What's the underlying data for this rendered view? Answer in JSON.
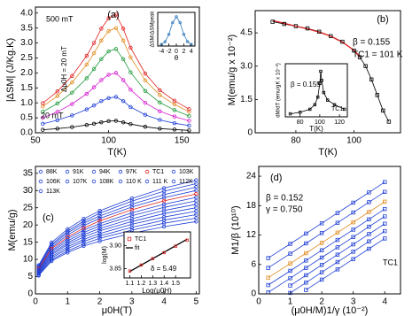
{
  "chart_data": [
    {
      "type": "line",
      "xlabel": "T(K)",
      "ylabel": "|ΔSM| (J/Kg.K)",
      "annotations": [
        "(a)",
        "500 mT",
        "20 mT",
        "Δμ0H = 20 mT"
      ],
      "x": [
        55,
        65,
        75,
        85,
        90,
        95,
        100,
        105,
        110,
        115,
        125,
        135,
        145,
        155
      ],
      "series": [
        {
          "color": "#000000",
          "marker": "circle",
          "values": [
            0.1,
            0.14,
            0.19,
            0.26,
            0.3,
            0.35,
            0.39,
            0.4,
            0.35,
            0.29,
            0.2,
            0.14,
            0.11,
            0.08
          ]
        },
        {
          "color": "#1f3fd6",
          "marker": "circle",
          "values": [
            0.3,
            0.42,
            0.58,
            0.78,
            0.91,
            1.06,
            1.16,
            1.2,
            1.06,
            0.86,
            0.6,
            0.43,
            0.32,
            0.24
          ]
        },
        {
          "color": "#d61fd0",
          "marker": "circle",
          "values": [
            0.5,
            0.7,
            0.96,
            1.3,
            1.52,
            1.76,
            1.94,
            2.0,
            1.76,
            1.44,
            1.0,
            0.72,
            0.54,
            0.4
          ]
        },
        {
          "color": "#1f9a3a",
          "marker": "circle",
          "values": [
            0.7,
            0.98,
            1.34,
            1.82,
            2.13,
            2.46,
            2.72,
            2.8,
            2.46,
            2.02,
            1.4,
            1.01,
            0.76,
            0.56
          ]
        },
        {
          "color": "#e08a1e",
          "marker": "circle",
          "values": [
            0.88,
            1.23,
            1.68,
            2.28,
            2.66,
            3.08,
            3.4,
            3.5,
            3.08,
            2.52,
            1.75,
            1.26,
            0.95,
            0.7
          ]
        },
        {
          "color": "#e01e1e",
          "marker": "circle",
          "values": [
            0.99,
            1.38,
            1.9,
            2.57,
            3.0,
            3.48,
            3.83,
            3.95,
            3.48,
            2.84,
            1.98,
            1.42,
            1.07,
            0.79
          ]
        }
      ],
      "xlim": [
        50,
        162
      ],
      "ylim": [
        0,
        4.2
      ],
      "xticks": [
        50,
        100,
        150
      ],
      "yticks": [
        {
          "value": 0,
          "label": "0.0"
        },
        0.5,
        {
          "value": 1,
          "label": "1.0"
        },
        1.5,
        {
          "value": 2,
          "label": "2.0"
        },
        2.5,
        {
          "value": 3,
          "label": "3.0"
        },
        3.5,
        {
          "value": 4,
          "label": "4.0"
        }
      ]
    },
    {
      "type": "line",
      "xlabel": "θ",
      "ylabel": "ΔSM/ΔSMpeak",
      "x": [
        -4,
        -3,
        -2,
        -1,
        0,
        1,
        2,
        3,
        4
      ],
      "series": [
        {
          "color": "#3a7fc0",
          "marker": "circle",
          "values": [
            0.05,
            0.15,
            0.4,
            0.8,
            1.0,
            0.8,
            0.4,
            0.15,
            0.05
          ]
        }
      ],
      "xlim": [
        -5,
        5
      ],
      "ylim": [
        0,
        1.15
      ],
      "xticks": [
        -4,
        -2,
        0,
        2,
        4
      ],
      "yticks": []
    },
    {
      "type": "line",
      "xlabel": "T(K)",
      "ylabel": "M(emu/g x 10⁻²)",
      "annotations": [
        "(b)",
        "β = 0.155",
        "TC1 = 101 K"
      ],
      "x": [
        72,
        76,
        80,
        84,
        88,
        92,
        96,
        100,
        102,
        104,
        106,
        108,
        110,
        112
      ],
      "series": [
        {
          "color": "#000000",
          "marker": "square",
          "values": [
            5.0,
            4.9,
            4.8,
            4.7,
            4.55,
            4.35,
            4.1,
            3.7,
            3.4,
            3.0,
            2.4,
            1.7,
            1.0,
            0.5
          ]
        },
        {
          "color": "#e01e1e",
          "marker": "none",
          "values": [
            5.05,
            4.93,
            4.8,
            4.68,
            4.53,
            4.35,
            4.08,
            3.72,
            3.43,
            null,
            null,
            null,
            null,
            null
          ]
        }
      ],
      "xlim": [
        66,
        116
      ],
      "ylim": [
        0,
        5.5
      ],
      "xticks": [
        80,
        100
      ],
      "yticks": [
        0,
        1.5,
        {
          "value": 3,
          "label": "3.0"
        },
        4.5
      ]
    },
    {
      "type": "line",
      "xlabel": "T(K)",
      "ylabel": "dM/dT (emu/gK x 10⁻²)",
      "annotations": [
        "β = 0.155",
        "TC1"
      ],
      "x": [
        70,
        80,
        90,
        95,
        98,
        100,
        101,
        102,
        104,
        108,
        115,
        125
      ],
      "series": [
        {
          "color": "#000000",
          "marker": "square",
          "values": [
            0.2,
            0.3,
            0.5,
            0.8,
            1.3,
            2.2,
            3.0,
            2.4,
            1.6,
            1.1,
            0.8,
            0.5
          ]
        }
      ],
      "xlim": [
        65,
        128
      ],
      "ylim": [
        0,
        3.5
      ],
      "xticks": [
        80,
        100,
        120
      ],
      "yticks": []
    },
    {
      "type": "line",
      "xlabel": "μ0H(T)",
      "ylabel": "M(emu/g)",
      "annotations": [
        "(c)"
      ],
      "x": [
        0.1,
        0.5,
        1,
        1.5,
        2,
        3,
        4,
        5
      ],
      "series": [
        {
          "name": "88K",
          "color": "#1f3fd6",
          "marker": "circle",
          "values": [
            8.3,
            14.9,
            18.8,
            21.8,
            24.1,
            27.7,
            30.7,
            33
          ]
        },
        {
          "name": "91K",
          "color": "#1f3fd6",
          "marker": "circle",
          "values": [
            8,
            14.4,
            18.2,
            21.1,
            23.4,
            26.9,
            29.8,
            32
          ]
        },
        {
          "name": "94K",
          "color": "#1f3fd6",
          "marker": "circle",
          "values": [
            7.8,
            14,
            17.7,
            20.5,
            22.6,
            26,
            28.8,
            31
          ]
        },
        {
          "name": "97K",
          "color": "#1f3fd6",
          "marker": "circle",
          "values": [
            7.5,
            13.5,
            17.1,
            19.8,
            21.9,
            25.2,
            27.9,
            30
          ]
        },
        {
          "name": "TC1",
          "color": "#e01e1e",
          "marker": "circle",
          "values": [
            7.3,
            13.1,
            16.5,
            19.1,
            21.2,
            24.4,
            27,
            29
          ]
        },
        {
          "name": "103K",
          "color": "#1f3fd6",
          "marker": "circle",
          "values": [
            7,
            12.6,
            16,
            18.5,
            20.4,
            23.5,
            26,
            28
          ]
        },
        {
          "name": "106K",
          "color": "#1f3fd6",
          "marker": "circle",
          "values": [
            6.8,
            12.2,
            15.4,
            17.8,
            19.7,
            22.7,
            25.1,
            27
          ]
        },
        {
          "name": "107K",
          "color": "#1f3fd6",
          "marker": "circle",
          "values": [
            6.5,
            11.7,
            14.8,
            17.2,
            19,
            21.8,
            24.2,
            26
          ]
        },
        {
          "name": "108K",
          "color": "#1f3fd6",
          "marker": "circle",
          "values": [
            6.3,
            11.3,
            14.3,
            16.5,
            18.3,
            21,
            23.3,
            25
          ]
        },
        {
          "name": "110 K",
          "color": "#1f3fd6",
          "marker": "circle",
          "values": [
            6,
            10.8,
            13.7,
            15.8,
            17.5,
            20.2,
            22.3,
            24
          ]
        },
        {
          "name": "111 K",
          "color": "#1f3fd6",
          "marker": "circle",
          "values": [
            5.8,
            10.4,
            13.1,
            15.2,
            16.8,
            19.3,
            21.4,
            23
          ]
        },
        {
          "name": "112K",
          "color": "#1f3fd6",
          "marker": "circle",
          "values": [
            5.5,
            9.9,
            12.5,
            14.5,
            16.1,
            18.5,
            20.5,
            22
          ]
        },
        {
          "name": "113K",
          "color": "#1f3fd6",
          "marker": "circle",
          "values": [
            5.3,
            9.5,
            12,
            13.9,
            15.3,
            17.6,
            19.5,
            21
          ]
        }
      ],
      "xlim": [
        0,
        5.1
      ],
      "ylim": [
        0,
        37
      ],
      "xticks": [
        0,
        1,
        2,
        3,
        4,
        5
      ],
      "yticks": [
        0,
        5,
        10,
        15,
        20,
        25,
        30,
        35
      ]
    },
    {
      "type": "line",
      "xlabel": "Log(μ0H)",
      "ylabel": "log(M)",
      "annotations": [
        "δ = 5.49"
      ],
      "x": [
        1.1,
        1.2,
        1.3,
        1.4,
        1.5,
        1.6
      ],
      "series": [
        {
          "name": "TC1",
          "color": "#e01e1e",
          "marker": "square",
          "line": false,
          "values": [
            3.845,
            3.858,
            3.872,
            3.885,
            3.899,
            3.912
          ]
        },
        {
          "name": "fit",
          "color": "#000000",
          "marker": "none",
          "values": [
            3.844,
            3.858,
            3.872,
            3.886,
            3.9,
            3.914
          ]
        }
      ],
      "xlim": [
        1.05,
        1.63
      ],
      "ylim": [
        3.83,
        3.93
      ],
      "xticks": [
        1.1,
        1.2,
        1.3,
        1.4,
        1.5
      ],
      "yticks": [
        3.85,
        {
          "value": 3.9,
          "label": "3.90"
        }
      ]
    },
    {
      "type": "line",
      "xlabel": "(μ0H/M)1/γ (10⁻²)",
      "ylabel": "M1/β (10¹⁰)",
      "annotations": [
        "(d)",
        "β = 0.152",
        "γ = 0.750",
        "TC1"
      ],
      "x": [
        0.3,
        1,
        1.5,
        2,
        2.5,
        3,
        3.5,
        4
      ],
      "series": [
        {
          "color": "#1f3fd6",
          "marker": "square",
          "values": [
            7.3,
            10.2,
            12.3,
            14.4,
            16.5,
            18.6,
            20.7,
            22.8
          ]
        },
        {
          "color": "#1f3fd6",
          "marker": "square",
          "values": [
            5.3,
            8.2,
            10.3,
            12.4,
            14.5,
            16.6,
            18.7,
            20.8
          ]
        },
        {
          "color": "#e08a1e",
          "marker": "square",
          "values": [
            3.3,
            6.2,
            8.3,
            10.4,
            12.5,
            14.6,
            16.7,
            18.8
          ]
        },
        {
          "color": "#1f3fd6",
          "marker": "square",
          "values": [
            1.8,
            4.7,
            6.8,
            8.9,
            11,
            13.1,
            15.2,
            17.3
          ]
        },
        {
          "color": "#1f3fd6",
          "marker": "square",
          "values": [
            0.3,
            3.2,
            5.3,
            7.4,
            9.5,
            11.6,
            13.7,
            15.8
          ]
        },
        {
          "color": "#1f3fd6",
          "marker": "square",
          "values": [
            null,
            1.7,
            3.8,
            5.9,
            8,
            10.1,
            12.2,
            14.3
          ]
        },
        {
          "color": "#1f3fd6",
          "marker": "square",
          "values": [
            null,
            0.2,
            2.3,
            4.4,
            6.5,
            8.6,
            10.7,
            12.8
          ]
        },
        {
          "color": "#1f3fd6",
          "marker": "square",
          "values": [
            null,
            null,
            0.8,
            2.9,
            5,
            7.1,
            9.2,
            11.3
          ]
        }
      ],
      "xlim": [
        0,
        4.5
      ],
      "ylim": [
        0,
        26
      ],
      "xticks": [
        0,
        1,
        2,
        3,
        4
      ],
      "yticks": [
        0,
        6,
        12,
        18,
        24
      ]
    }
  ]
}
